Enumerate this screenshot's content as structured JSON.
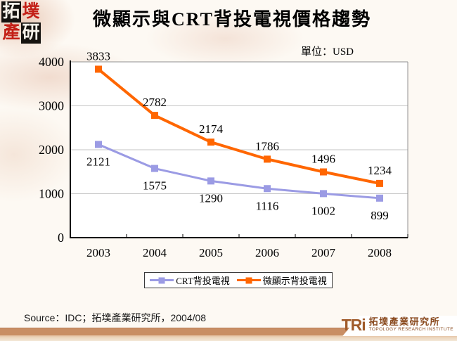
{
  "header": {
    "title": "微顯示與CRT背投電視價格趨勢",
    "logo_chars": [
      "拓",
      "墣",
      "產",
      "研"
    ]
  },
  "chart_data": {
    "type": "line",
    "title": "微顯示與CRT背投電視價格趨勢",
    "unit_label": "單位：USD",
    "x": [
      "2003",
      "2004",
      "2005",
      "2006",
      "2007",
      "2008"
    ],
    "series": [
      {
        "name": "CRT背投電視",
        "values": [
          2121,
          1575,
          1290,
          1116,
          1002,
          899
        ],
        "color": "#9b9be4",
        "marker": "square",
        "label_position": "below",
        "line_width": 3
      },
      {
        "name": "微顯示背投電視",
        "values": [
          3833,
          2782,
          2174,
          1786,
          1496,
          1234
        ],
        "color": "#ff6600",
        "marker": "square",
        "label_position": "above",
        "line_width": 4
      }
    ],
    "ylim": [
      0,
      4000
    ],
    "yticks": [
      0,
      1000,
      2000,
      3000,
      4000
    ],
    "grid": true,
    "legend_position": "bottom"
  },
  "footer": {
    "source": "Source：IDC；拓墣產業研究所，2004/08",
    "logo": {
      "acronym": "TRi",
      "name_cjk": "拓墣產業研究所",
      "name_en": "TOPOLOGY RESEARCH INSTITUTE"
    }
  }
}
